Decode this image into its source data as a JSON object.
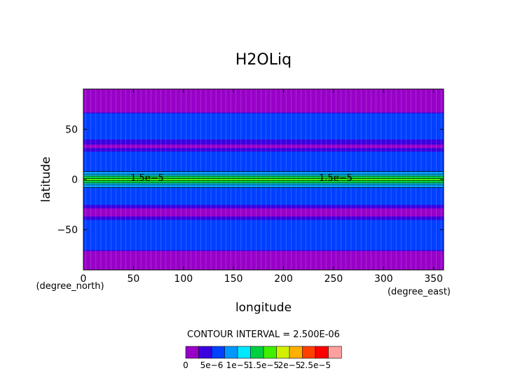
{
  "chart_data": {
    "type": "heatmap",
    "title": "H2OLiq",
    "xlabel": "longitude",
    "ylabel": "latitude",
    "x_unit": "(degree_east)",
    "y_unit": "(degree_north)",
    "xlim": [
      0,
      360
    ],
    "ylim": [
      -90,
      90
    ],
    "x_ticks": [
      0,
      50,
      100,
      150,
      200,
      250,
      300,
      350
    ],
    "y_ticks": [
      -50,
      0,
      50
    ],
    "x_tick_labels": [
      "0",
      "50",
      "100",
      "150",
      "200",
      "250",
      "300",
      "350"
    ],
    "y_tick_labels": [
      "−50",
      "0",
      "50"
    ],
    "contour_interval_text": "CONTOUR INTERVAL = 2.500E-06",
    "contour_labels": [
      "1.5e−5",
      "1.5e−5"
    ],
    "colorbar": {
      "levels": [
        0,
        2.5e-06,
        5e-06,
        7.5e-06,
        1e-05,
        1.25e-05,
        1.5e-05,
        1.75e-05,
        2e-05,
        2.25e-05,
        2.5e-05,
        2.75e-05
      ],
      "colors": [
        "#9800c8",
        "#3a00e0",
        "#0040ff",
        "#0098ff",
        "#00e8ff",
        "#00d040",
        "#40f000",
        "#d0f000",
        "#ffb000",
        "#ff4000",
        "#ff0000",
        "#ffa0a0"
      ],
      "tick_labels": [
        "0",
        "5e−6",
        "1e−5",
        "1.5e−5",
        "2e−5",
        "2.5e−5"
      ]
    },
    "zonal_profile": {
      "lat": [
        -90,
        -72,
        -70,
        -40,
        -35,
        -30,
        -25,
        -22,
        -12,
        -8,
        -5,
        -3,
        0,
        3,
        5,
        8,
        12,
        20,
        28,
        33,
        40,
        66,
        68,
        90
      ],
      "value": [
        0,
        0,
        5e-06,
        5e-06,
        1.5e-06,
        1.5e-06,
        5e-06,
        5e-06,
        5e-06,
        7.5e-06,
        1e-05,
        1.3e-05,
        1.6e-05,
        1.3e-05,
        1e-05,
        7.5e-06,
        5e-06,
        5e-06,
        5e-06,
        1.5e-06,
        5e-06,
        5e-06,
        0,
        0
      ]
    }
  }
}
